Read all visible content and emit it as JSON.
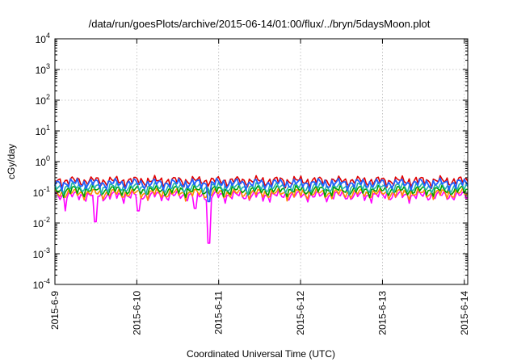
{
  "chart_data": {
    "type": "line",
    "title": "/data/run/goesPlots/archive/2015-06-14/01:00/flux/../bryn/5daysMoon.plot",
    "xlabel": "Coordinated Universal Time (UTC)",
    "ylabel": "cGy/day",
    "yscale": "log",
    "ylim": [
      0.0001,
      10000
    ],
    "xlim": [
      "2015-06-09T00:00",
      "2015-06-14T01:00"
    ],
    "x_ticks": [
      "2015-6-9",
      "2015-6-10",
      "2015-6-11",
      "2015-6-12",
      "2015-6-13",
      "2015-6-14"
    ],
    "y_ticks": [
      {
        "value": 0.0001,
        "base": "10",
        "exp": "-4"
      },
      {
        "value": 0.001,
        "base": "10",
        "exp": "-3"
      },
      {
        "value": 0.01,
        "base": "10",
        "exp": "-2"
      },
      {
        "value": 0.1,
        "base": "10",
        "exp": "-1"
      },
      {
        "value": 1,
        "base": "10",
        "exp": "0"
      },
      {
        "value": 10,
        "base": "10",
        "exp": "1"
      },
      {
        "value": 100,
        "base": "10",
        "exp": "2"
      },
      {
        "value": 1000,
        "base": "10",
        "exp": "3"
      },
      {
        "value": 10000,
        "base": "10",
        "exp": "4"
      }
    ],
    "grid": true,
    "legend": "none",
    "series": [
      {
        "color": "#ff00ff",
        "base": 0.08,
        "dips": [
          [
            "2015-06-09T03:00",
            0.025
          ],
          [
            "2015-06-09T12:00",
            0.011
          ],
          [
            "2015-06-10T00:30",
            0.025
          ],
          [
            "2015-06-10T17:00",
            0.03
          ],
          [
            "2015-06-10T21:00",
            0.0022
          ]
        ]
      },
      {
        "color": "#ff8c00",
        "base": 0.095,
        "dips": []
      },
      {
        "color": "#00a000",
        "base": 0.12,
        "dips": []
      },
      {
        "color": "#20b2aa",
        "base": 0.15,
        "dips": []
      },
      {
        "color": "#e00000",
        "base": 0.24,
        "dips": []
      },
      {
        "color": "#2060ff",
        "base": 0.2,
        "dips": [
          [
            "2015-06-10T21:00",
            0.05
          ]
        ]
      }
    ]
  }
}
